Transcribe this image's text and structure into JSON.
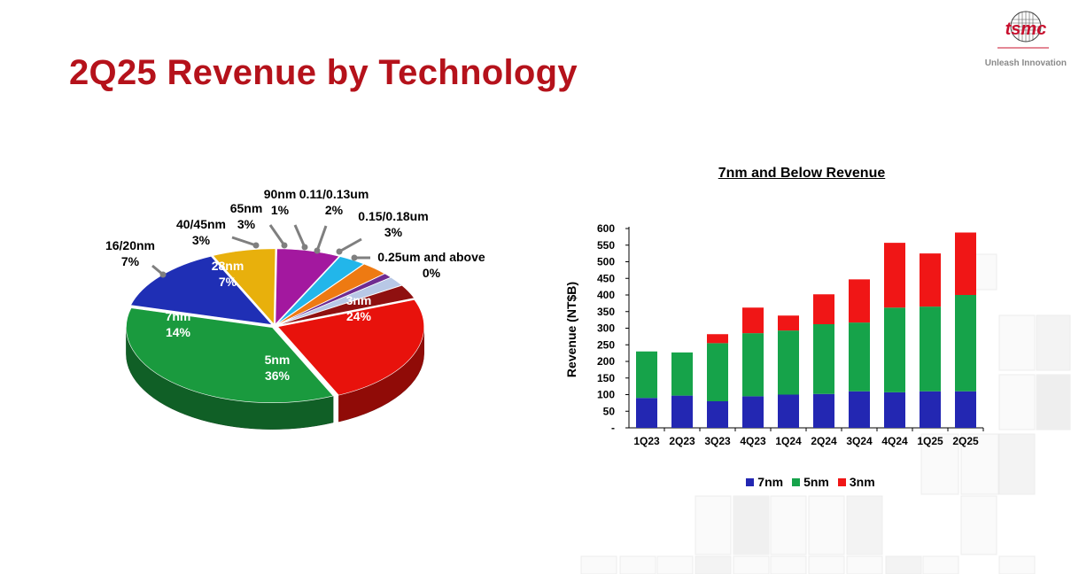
{
  "page": {
    "title": "2Q25 Revenue by Technology"
  },
  "logo": {
    "wordmark": "tsmc",
    "tagline": "Unleash Innovation"
  },
  "chart_data": [
    {
      "type": "pie",
      "style": "3d-exploded",
      "slices": [
        {
          "label": "3nm",
          "value": 24,
          "display": "24%",
          "color": "#e8120c"
        },
        {
          "label": "5nm",
          "value": 36,
          "display": "36%",
          "color": "#1a9a3e"
        },
        {
          "label": "7nm",
          "value": 14,
          "display": "14%",
          "color": "#1f2fb5"
        },
        {
          "label": "16/20nm",
          "value": 7,
          "display": "7%",
          "color": "#e8b00c"
        },
        {
          "label": "28nm",
          "value": 7,
          "display": "7%",
          "color": "#a3189f"
        },
        {
          "label": "40/45nm",
          "value": 3,
          "display": "3%",
          "color": "#22b6ea"
        },
        {
          "label": "65nm",
          "value": 3,
          "display": "3%",
          "color": "#ee7a12"
        },
        {
          "label": "90nm",
          "value": 1,
          "display": "1%",
          "color": "#6f2c91"
        },
        {
          "label": "0.11/0.13um",
          "value": 2,
          "display": "2%",
          "color": "#b8c8e6"
        },
        {
          "label": "0.15/0.18um",
          "value": 3,
          "display": "3%",
          "color": "#8f1010"
        },
        {
          "label": "0.25um and above",
          "value": 0,
          "display": "0%",
          "color": "#555555"
        }
      ]
    },
    {
      "type": "bar",
      "stacked": true,
      "title": "7nm and Below Revenue",
      "ylabel": "Revenue (NT$B)",
      "xlabel": "",
      "ylim": [
        0,
        600
      ],
      "yticks": [
        "-",
        "50",
        "100",
        "150",
        "200",
        "250",
        "300",
        "350",
        "400",
        "450",
        "500",
        "550",
        "600"
      ],
      "categories": [
        "1Q23",
        "2Q23",
        "3Q23",
        "4Q23",
        "1Q24",
        "2Q24",
        "3Q24",
        "4Q24",
        "1Q25",
        "2Q25"
      ],
      "series": [
        {
          "name": "7nm",
          "color": "#2327b2",
          "values": [
            90,
            97,
            80,
            95,
            100,
            102,
            110,
            107,
            110,
            110
          ]
        },
        {
          "name": "5nm",
          "color": "#16a34a",
          "values": [
            140,
            130,
            175,
            190,
            193,
            210,
            207,
            255,
            255,
            290
          ]
        },
        {
          "name": "3nm",
          "color": "#f01616",
          "values": [
            0,
            0,
            27,
            77,
            45,
            90,
            130,
            195,
            160,
            188
          ]
        }
      ],
      "legend_position": "bottom",
      "grid": false
    }
  ]
}
